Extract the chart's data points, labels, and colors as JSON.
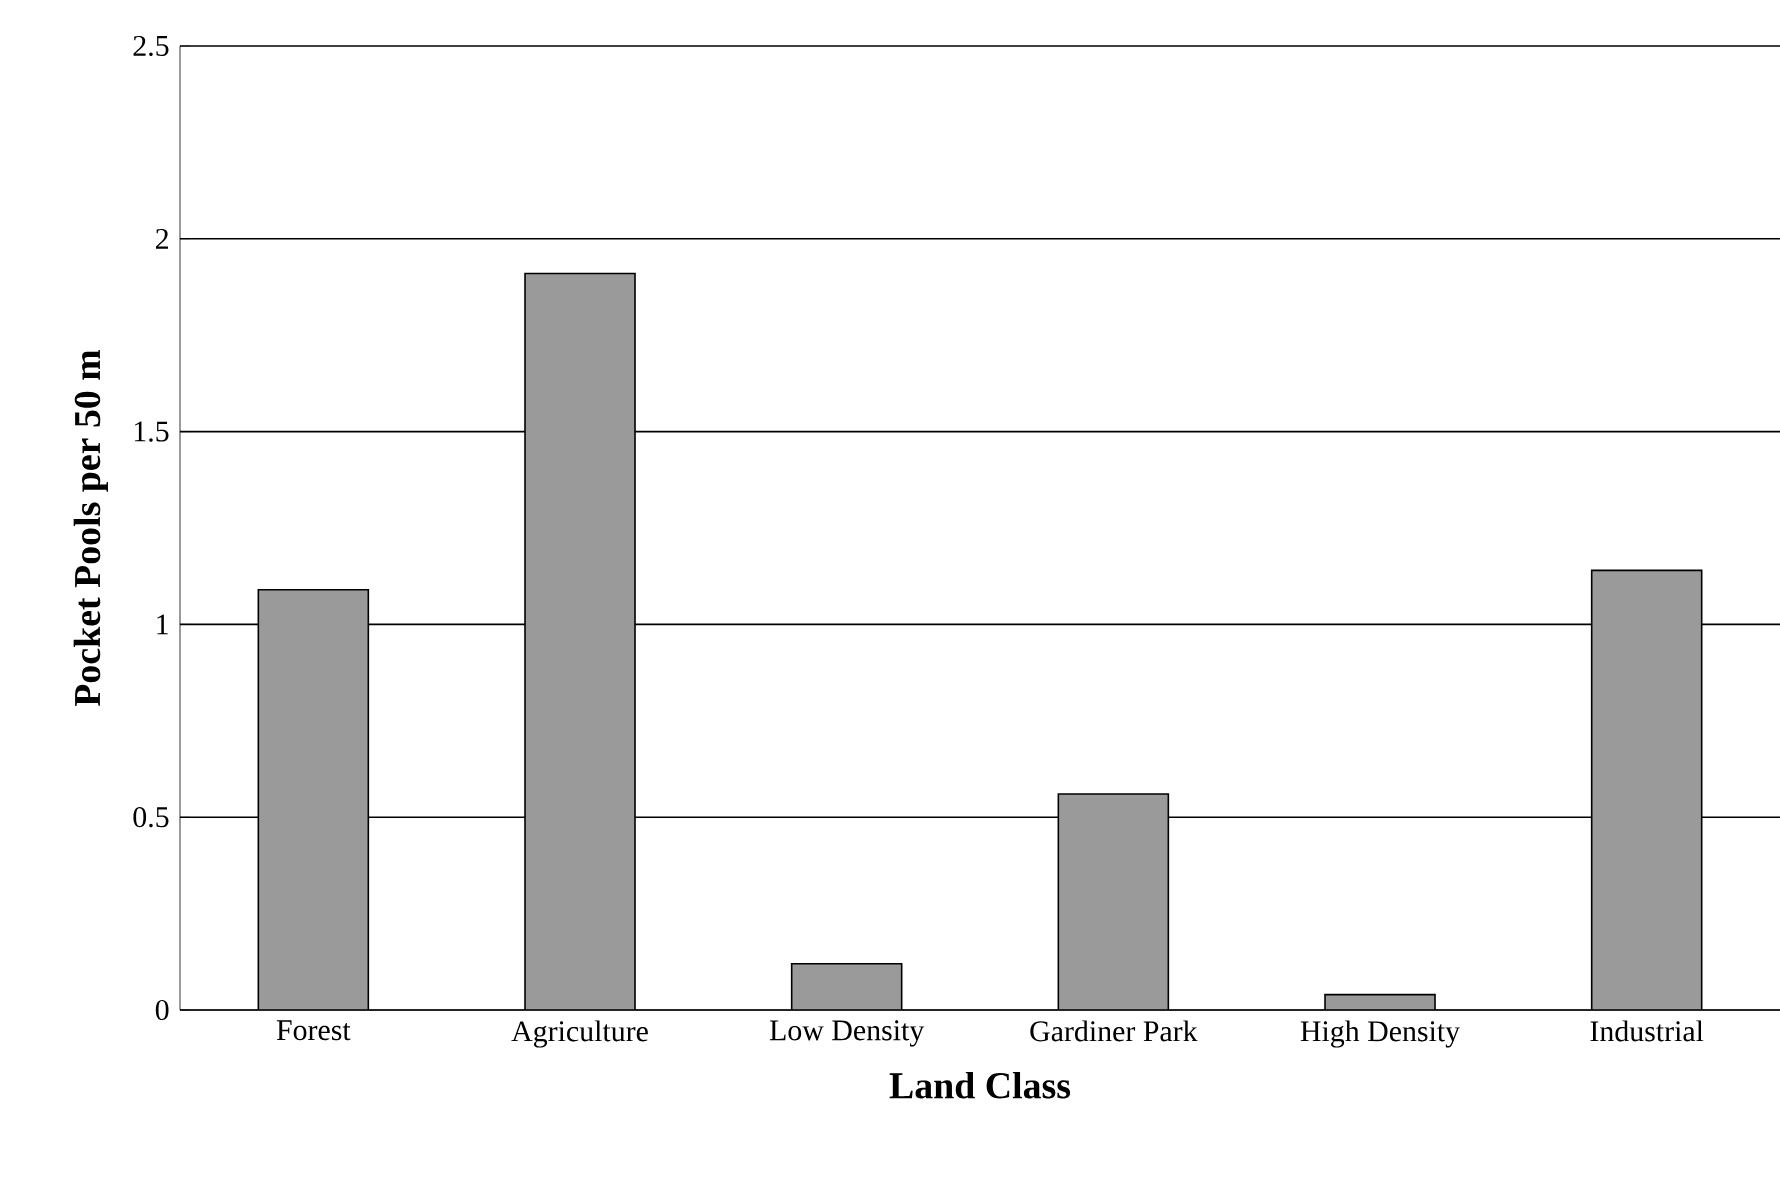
{
  "chart_data": {
    "type": "bar",
    "xlabel": "Land Class",
    "ylabel": "Pocket Pools per 50 m",
    "categories": [
      "Forest",
      "Agriculture",
      "Low Density",
      "Gardiner Park",
      "High Density",
      "Industrial"
    ],
    "values": [
      1.09,
      1.91,
      0.12,
      0.56,
      0.04,
      1.14
    ],
    "color": "#9a9a9a",
    "ylim": [
      0,
      2.5
    ],
    "yticks": [
      0,
      0.5,
      1,
      1.5,
      2,
      2.5
    ],
    "grid": "y"
  }
}
